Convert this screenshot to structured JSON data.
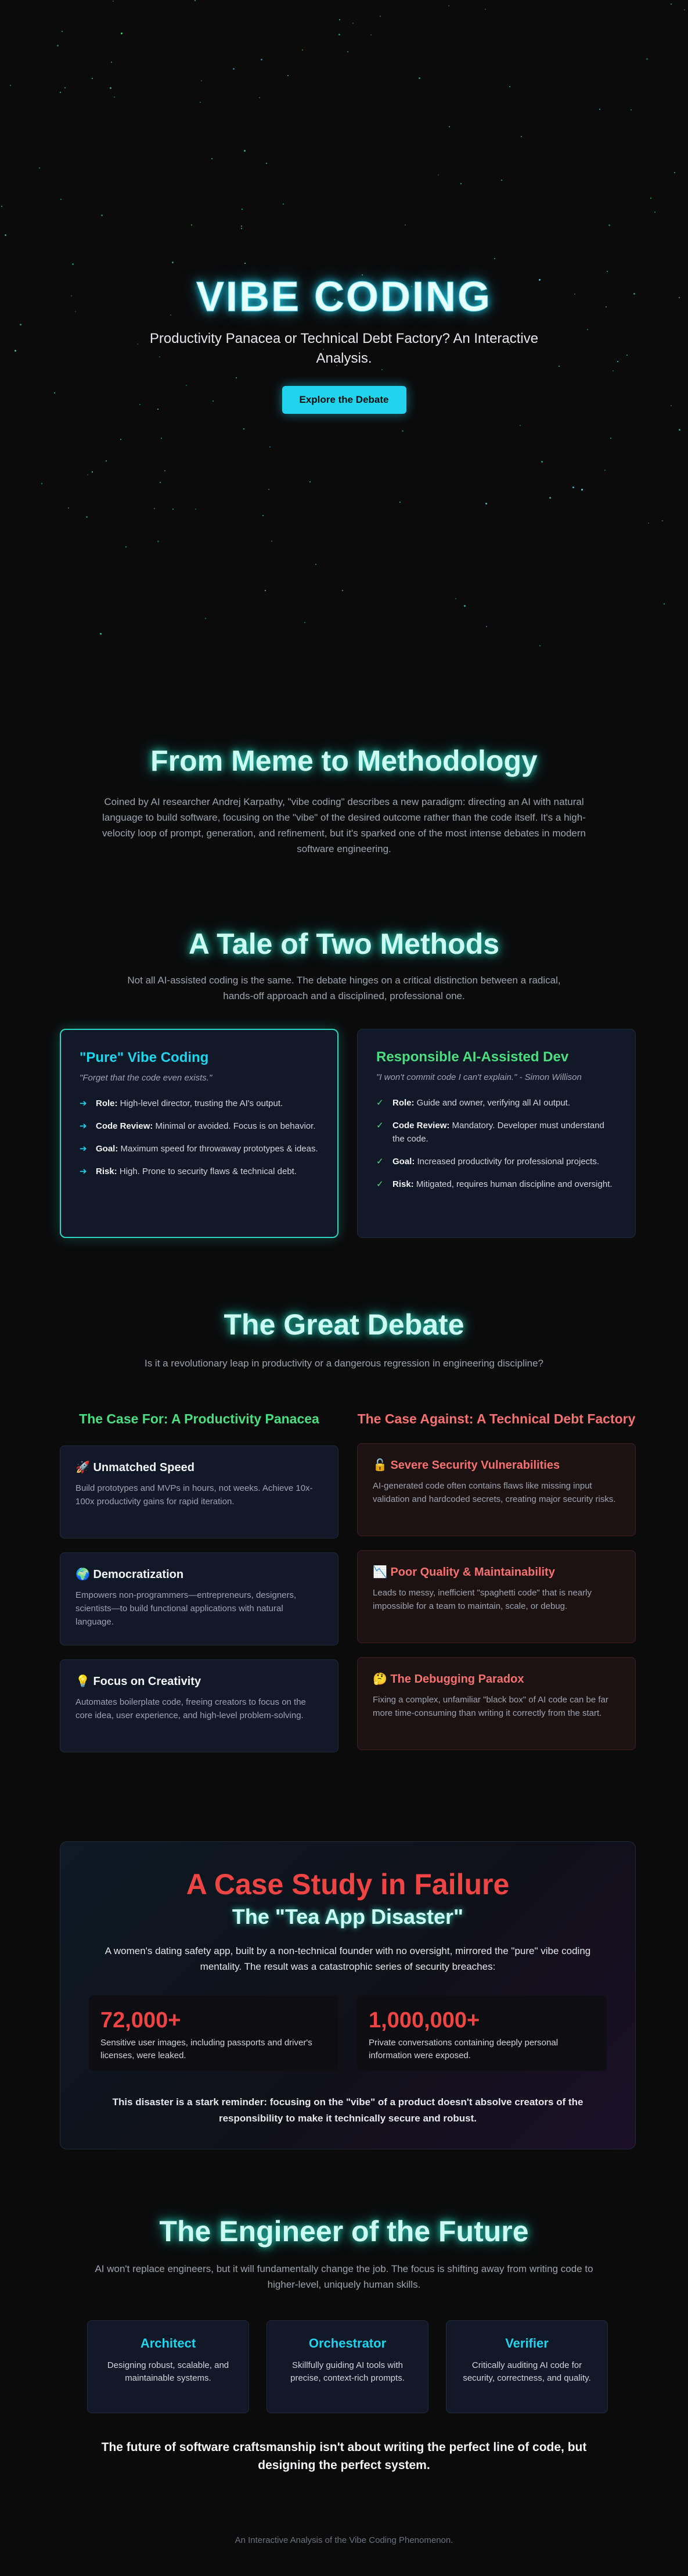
{
  "colors": {
    "accent_cyan": "#22d3ee",
    "accent_green": "#4ade80",
    "accent_red": "#ef4444",
    "bg": "#0b0b0b"
  },
  "hero": {
    "title": "VIBE CODING",
    "subtitle": "Productivity Panacea or Technical Debt Factory? An Interactive Analysis.",
    "cta": "Explore the Debate"
  },
  "meme": {
    "title": "From Meme to Methodology",
    "body": "Coined by AI researcher Andrej Karpathy, \"vibe coding\" describes a new paradigm: directing an AI with natural language to build software, focusing on the \"vibe\" of the desired outcome rather than the code itself. It's a high-velocity loop of prompt, generation, and refinement, but it's sparked one of the most intense debates in modern software engineering."
  },
  "methods": {
    "title": "A Tale of Two Methods",
    "lead": "Not all AI-assisted coding is the same. The debate hinges on a critical distinction between a radical, hands-off approach and a disciplined, professional one.",
    "pure": {
      "title": "\"Pure\" Vibe Coding",
      "quote": "\"Forget that the code even exists.\"",
      "mark": "➔",
      "items": [
        {
          "k": "Role:",
          "v": " High-level director, trusting the AI's output."
        },
        {
          "k": "Code Review:",
          "v": " Minimal or avoided. Focus is on behavior."
        },
        {
          "k": "Goal:",
          "v": " Maximum speed for throwaway prototypes & ideas."
        },
        {
          "k": "Risk:",
          "v": " High. Prone to security flaws & technical debt."
        }
      ]
    },
    "responsible": {
      "title": "Responsible AI-Assisted Dev",
      "quote": "\"I won't commit code I can't explain.\" - Simon Willison",
      "mark": "✓",
      "items": [
        {
          "k": "Role:",
          "v": " Guide and owner, verifying all AI output."
        },
        {
          "k": "Code Review:",
          "v": " Mandatory. Developer must understand the code."
        },
        {
          "k": "Goal:",
          "v": " Increased productivity for professional projects."
        },
        {
          "k": "Risk:",
          "v": " Mitigated, requires human discipline and oversight."
        }
      ]
    }
  },
  "debate": {
    "title": "The Great Debate",
    "lead": "Is it a revolutionary leap in productivity or a dangerous regression in engineering discipline?",
    "for": {
      "title": "The Case For: A Productivity Panacea",
      "cards": [
        {
          "icon": "rocket-icon",
          "glyph": "🚀",
          "title": "Unmatched Speed",
          "body": "Build prototypes and MVPs in hours, not weeks. Achieve 10x-100x productivity gains for rapid iteration."
        },
        {
          "icon": "globe-icon",
          "glyph": "🌍",
          "title": "Democratization",
          "body": "Empowers non-programmers—entrepreneurs, designers, scientists—to build functional applications with natural language."
        },
        {
          "icon": "lightbulb-icon",
          "glyph": "💡",
          "title": "Focus on Creativity",
          "body": "Automates boilerplate code, freeing creators to focus on the core idea, user experience, and high-level problem-solving."
        }
      ]
    },
    "against": {
      "title": "The Case Against: A Technical Debt Factory",
      "cards": [
        {
          "icon": "lock-icon",
          "glyph": "🔓",
          "title": "Severe Security Vulnerabilities",
          "body": "AI-generated code often contains flaws like missing input validation and hardcoded secrets, creating major security risks."
        },
        {
          "icon": "chart-down-icon",
          "glyph": "📉",
          "title": "Poor Quality & Maintainability",
          "body": "Leads to messy, inefficient \"spaghetti code\" that is nearly impossible for a team to maintain, scale, or debug."
        },
        {
          "icon": "thinking-face-icon",
          "glyph": "🤔",
          "title": "The Debugging Paradox",
          "body": "Fixing a complex, unfamiliar \"black box\" of AI code can be far more time-consuming than writing it correctly from the start."
        }
      ]
    }
  },
  "case_study": {
    "title": "A Case Study in Failure",
    "subtitle": "The \"Tea App Disaster\"",
    "lead": "A women's dating safety app, built by a non-technical founder with no oversight, mirrored the \"pure\" vibe coding mentality. The result was a catastrophic series of security breaches:",
    "stats": [
      {
        "num": "72,000+",
        "desc": "Sensitive user images, including passports and driver's licenses, were leaked."
      },
      {
        "num": "1,000,000+",
        "desc": "Private conversations containing deeply personal information were exposed."
      }
    ],
    "moral": "This disaster is a stark reminder: focusing on the \"vibe\" of a product doesn't absolve creators of the responsibility to make it technically secure and robust."
  },
  "engineer": {
    "title": "The Engineer of the Future",
    "lead": "AI won't replace engineers, but it will fundamentally change the job. The focus is shifting away from writing code to higher-level, uniquely human skills.",
    "roles": [
      {
        "title": "Architect",
        "body": "Designing robust, scalable, and maintainable systems."
      },
      {
        "title": "Orchestrator",
        "body": "Skillfully guiding AI tools with precise, context-rich prompts."
      },
      {
        "title": "Verifier",
        "body": "Critically auditing AI code for security, correctness, and quality."
      }
    ],
    "closing": "The future of software craftsmanship isn't about writing the perfect line of code, but designing the perfect system."
  },
  "footer": "An Interactive Analysis of the Vibe Coding Phenomenon."
}
